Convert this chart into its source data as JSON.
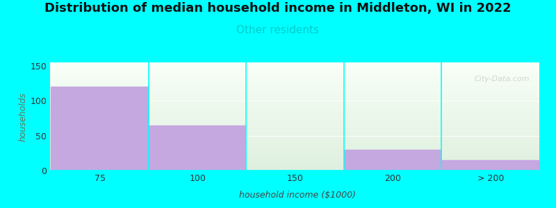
{
  "title": "Distribution of median household income in Middleton, WI in 2022",
  "subtitle": "Other residents",
  "subtitle_color": "#00cccc",
  "xlabel": "household income ($1000)",
  "ylabel": "households",
  "background_color": "#00ffff",
  "bar_color": "#c5a8e0",
  "bar_edge_color": "#c5a8e0",
  "categories": [
    "75",
    "100",
    "150",
    "200",
    "> 200"
  ],
  "values": [
    120,
    65,
    0,
    30,
    15
  ],
  "ylim": [
    0,
    155
  ],
  "yticks": [
    0,
    50,
    100,
    150
  ],
  "title_fontsize": 13,
  "subtitle_fontsize": 11,
  "label_fontsize": 9,
  "tick_fontsize": 9,
  "watermark": "City-Data.com",
  "ylabel_color": "#5a7a5a",
  "xlabel_color": "#444444"
}
